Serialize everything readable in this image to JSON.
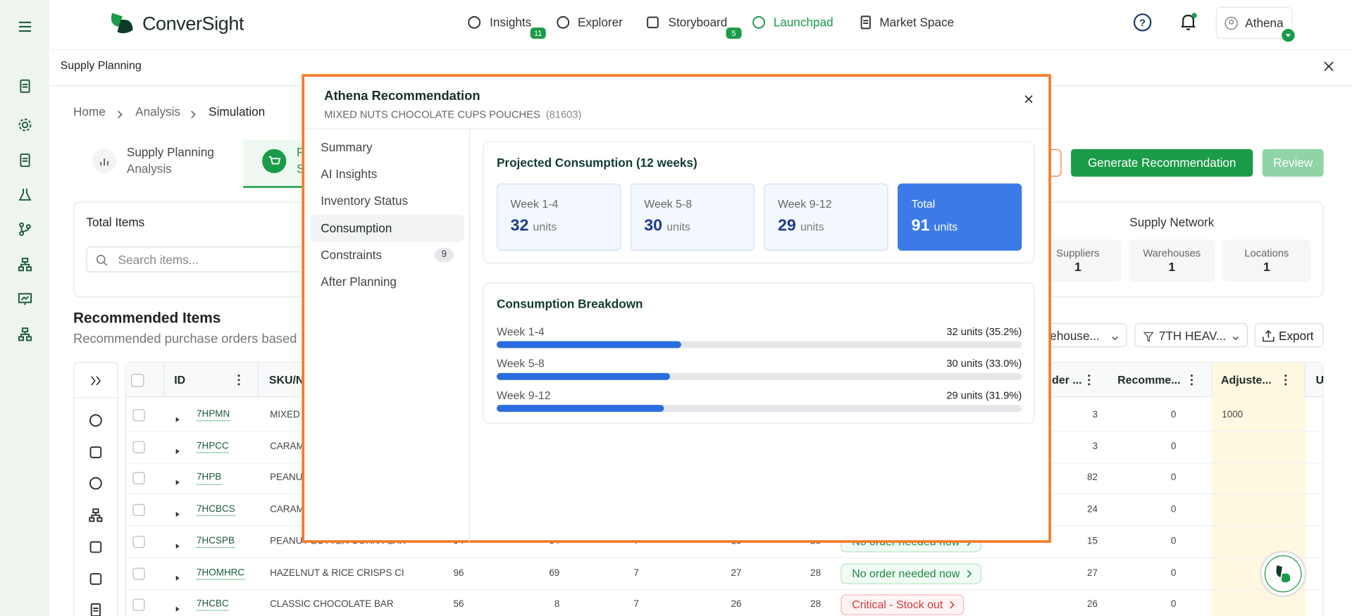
{
  "nav": {
    "brand": "ConverSight",
    "items": [
      {
        "label": "Insights",
        "badge": 11
      },
      {
        "label": "Explorer"
      },
      {
        "label": "Storyboard",
        "badge": 5
      },
      {
        "label": "Launchpad"
      },
      {
        "label": "Market Space"
      }
    ],
    "user": "Athena"
  },
  "panel": {
    "title": "Supply Planning",
    "breadcrumb": [
      "Home",
      "Analysis",
      "Simulation"
    ],
    "tabs": [
      {
        "title": "Supply Planning",
        "subtitle": "Analysis"
      },
      {
        "title": "P",
        "subtitle": "S"
      }
    ],
    "buttons": [
      "Generate Recommendation",
      "Review"
    ],
    "total_items": {
      "title": "Total Items",
      "search_placeholder": "Search items..."
    },
    "supply_network": {
      "title": "Supply Network",
      "stats": [
        {
          "label": "Suppliers",
          "value": 1
        },
        {
          "label": "Warehouses",
          "value": 1
        },
        {
          "label": "Locations",
          "value": 1
        }
      ]
    },
    "recommended": {
      "title": "Recommended Items",
      "subtitle": "Recommended purchase orders based",
      "filters": [
        "rehouse...",
        "7TH HEAV..."
      ],
      "export": "Export"
    },
    "table": {
      "headers": [
        "ID",
        "SKU/N",
        "der ...",
        "Recomme...",
        "Adjuste...",
        "U"
      ],
      "rows": [
        {
          "id": "7HPMN",
          "sku": "MIXED",
          "order_qty": 3,
          "recommended": 0,
          "adjusted": 1000
        },
        {
          "id": "7HPCC",
          "sku": "CARAM",
          "order_qty": 3,
          "recommended": 0
        },
        {
          "id": "7HPB",
          "sku": "PEANU",
          "order_qty": 82,
          "recommended": 0
        },
        {
          "id": "7HCBCS",
          "sku": "CARAM",
          "order_qty": 24,
          "recommended": 0
        },
        {
          "id": "7HCSPB",
          "sku": "PEANUT BUTTER CORN FLAK",
          "cells": [
            94,
            54,
            7,
            15,
            28
          ],
          "status": "No order needed now",
          "status_color": "green",
          "order_qty": 15,
          "recommended": 0
        },
        {
          "id": "7HOMHRC",
          "sku": "HAZELNUT & RICE CRISPS CI",
          "cells": [
            96,
            69,
            7,
            27,
            28
          ],
          "status": "No order needed now",
          "status_color": "green",
          "order_qty": 27,
          "recommended": 0
        },
        {
          "id": "7HCBC",
          "sku": "CLASSIC CHOCOLATE BAR",
          "cells": [
            56,
            8,
            7,
            26,
            28
          ],
          "status": "Critical - Stock out",
          "status_color": "red",
          "order_qty": 26,
          "recommended": 0
        }
      ]
    }
  },
  "modal": {
    "title": "Athena Recommendation",
    "product": "MIXED NUTS CHOCOLATE CUPS POUCHES",
    "code": "(81603)",
    "menu": [
      {
        "label": "Summary"
      },
      {
        "label": "AI Insights"
      },
      {
        "label": "Inventory Status"
      },
      {
        "label": "Consumption",
        "active": true
      },
      {
        "label": "Constraints",
        "badge": 9
      },
      {
        "label": "After Planning"
      }
    ],
    "projected": {
      "title": "Projected Consumption (12 weeks)",
      "cards": [
        {
          "label": "Week 1-4",
          "value": 32,
          "unit": "units"
        },
        {
          "label": "Week 5-8",
          "value": 30,
          "unit": "units"
        },
        {
          "label": "Week 9-12",
          "value": 29,
          "unit": "units"
        },
        {
          "label": "Total",
          "value": 91,
          "unit": "units",
          "highlight": true
        }
      ]
    },
    "breakdown": {
      "title": "Consumption Breakdown",
      "color": "#2b6de0",
      "xlim": [
        0,
        100
      ],
      "items": [
        {
          "label": "Week 1-4",
          "units": 32,
          "percent": 35.2,
          "value_label": "32 units (35.2%)"
        },
        {
          "label": "Week 5-8",
          "units": 30,
          "percent": 33.0,
          "value_label": "30 units (33.0%)"
        },
        {
          "label": "Week 9-12",
          "units": 29,
          "percent": 31.9,
          "value_label": "29 units (31.9%)"
        }
      ]
    }
  }
}
